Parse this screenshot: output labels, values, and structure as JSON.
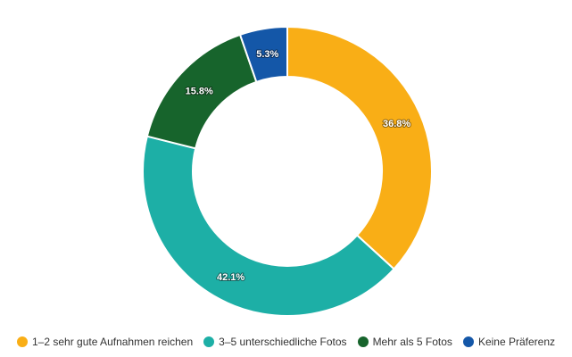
{
  "chart_data": {
    "type": "pie",
    "donut": true,
    "unit": "%",
    "slices": [
      {
        "label": "1–2 sehr gute Aufnahmen reichen",
        "value": 36.8,
        "display": "36.8%",
        "color": "#F9AE16"
      },
      {
        "label": "3–5 unterschiedliche Fotos",
        "value": 42.1,
        "display": "42.1%",
        "color": "#1DAFA6"
      },
      {
        "label": "Mehr als 5 Fotos",
        "value": 15.8,
        "display": "15.8%",
        "color": "#17642C"
      },
      {
        "label": "Keine Präferenz",
        "value": 5.3,
        "display": "5.3%",
        "color": "#1457A8"
      }
    ],
    "legend_position": "bottom"
  }
}
